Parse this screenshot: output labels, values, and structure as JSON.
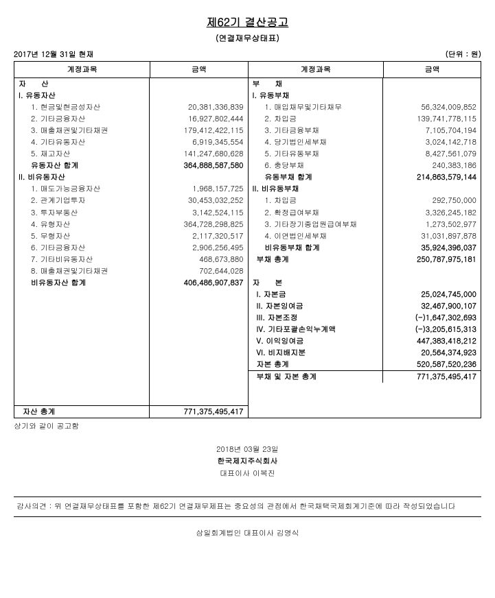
{
  "title": "제62기 결산공고",
  "subtitle": "(연결재무상태표)",
  "date_header": "2017년 12월 31일 현재",
  "unit": "(단위 : 원)",
  "headers": {
    "account": "계정과목",
    "amount": "금액"
  },
  "left": {
    "section": "자　　산",
    "g1_title": "I. 유동자산",
    "g1_items": [
      {
        "label": "1. 현금및현금성자산",
        "amount": "20,381,336,839"
      },
      {
        "label": "2. 기타금융자산",
        "amount": "16,927,802,444"
      },
      {
        "label": "3. 매출채권및기타채권",
        "amount": "179,412,422,115"
      },
      {
        "label": "4. 기타유동자산",
        "amount": "6,919,345,554"
      },
      {
        "label": "5. 재고자산",
        "amount": "141,247,680,628"
      }
    ],
    "g1_subtotal": {
      "label": "유동자산 합계",
      "amount": "364,888,587,580"
    },
    "g2_title": "II. 비유동자산",
    "g2_items": [
      {
        "label": "1. 매도가능금융자산",
        "amount": "1,968,157,725"
      },
      {
        "label": "2. 관계기업투자",
        "amount": "30,453,032,252"
      },
      {
        "label": "3. 투자부동산",
        "amount": "3,142,524,115"
      },
      {
        "label": "4. 유형자산",
        "amount": "364,728,298,825"
      },
      {
        "label": "5. 무형자산",
        "amount": "2,117,320,517"
      },
      {
        "label": "6. 기타금융자산",
        "amount": "2,906,256,495"
      },
      {
        "label": "7. 기타비유동자산",
        "amount": "468,673,880"
      },
      {
        "label": "8. 매출채권및기타채권",
        "amount": "702,644,028"
      }
    ],
    "g2_subtotal": {
      "label": "비유동자산 합계",
      "amount": "406,486,907,837"
    },
    "total": {
      "label": "자산 총계",
      "amount": "771,375,495,417"
    }
  },
  "right": {
    "section": "부　　채",
    "g1_title": "I. 유동부채",
    "g1_items": [
      {
        "label": "1. 매입채무및기타채무",
        "amount": "56,324,009,852"
      },
      {
        "label": "2. 차입금",
        "amount": "139,741,778,115"
      },
      {
        "label": "3. 기타금융부채",
        "amount": "7,105,704,194"
      },
      {
        "label": "4. 당기법인세부채",
        "amount": "3,024,142,718"
      },
      {
        "label": "5. 기타유동부채",
        "amount": "8,427,561,079"
      },
      {
        "label": "6. 충당부채",
        "amount": "240,383,186"
      }
    ],
    "g1_subtotal": {
      "label": "유동부채 합계",
      "amount": "214,863,579,144"
    },
    "g2_title": "II. 비유동부채",
    "g2_items": [
      {
        "label": "1. 차입금",
        "amount": "292,750,000"
      },
      {
        "label": "2. 확정급여부채",
        "amount": "3,326,245,182"
      },
      {
        "label": "3. 기타장기종업원급여부채",
        "amount": "1,273,502,977"
      },
      {
        "label": "4. 이연법인세부채",
        "amount": "31,031,897,878"
      }
    ],
    "g2_subtotal": {
      "label": "비유동부채 합계",
      "amount": "35,924,396,037"
    },
    "liab_total": {
      "label": "부채 총계",
      "amount": "250,787,975,181"
    },
    "equity_section": "자　　본",
    "equity_items": [
      {
        "label": "I. 자본금",
        "amount": "25,024,745,000"
      },
      {
        "label": "II. 자본잉여금",
        "amount": "32,467,900,107"
      },
      {
        "label": "III. 자본조정",
        "amount": "(-)1,647,302,693"
      },
      {
        "label": "IV. 기타포괄손익누계액",
        "amount": "(-)3,205,615,313"
      },
      {
        "label": "V. 이익잉여금",
        "amount": "447,383,418,212"
      },
      {
        "label": "VI. 비지배지분",
        "amount": "20,564,374,923"
      }
    ],
    "equity_total": {
      "label": "자본 총계",
      "amount": "520,587,520,236"
    },
    "total": {
      "label": "부채 및 자본 총계",
      "amount": "771,375,495,417"
    }
  },
  "footnote": "상기와 같이 공고함",
  "footer": {
    "date": "2018년 03월 23일",
    "company": "한국제지주식회사",
    "rep": "대표이사 이복진"
  },
  "opinion": "감사의견 : 위 연결재무상태표를 포함한 제62기 연결재무제표는 중요성의 관점에서 한국채택국제회계기준에 따라 작성되었습니다",
  "auditor": "삼일회계법인 대표이사 김영식",
  "style": {
    "font_size_body": 11,
    "font_size_title": 16,
    "border_color": "#000000",
    "background": "#ffffff",
    "text_color": "#000000"
  }
}
